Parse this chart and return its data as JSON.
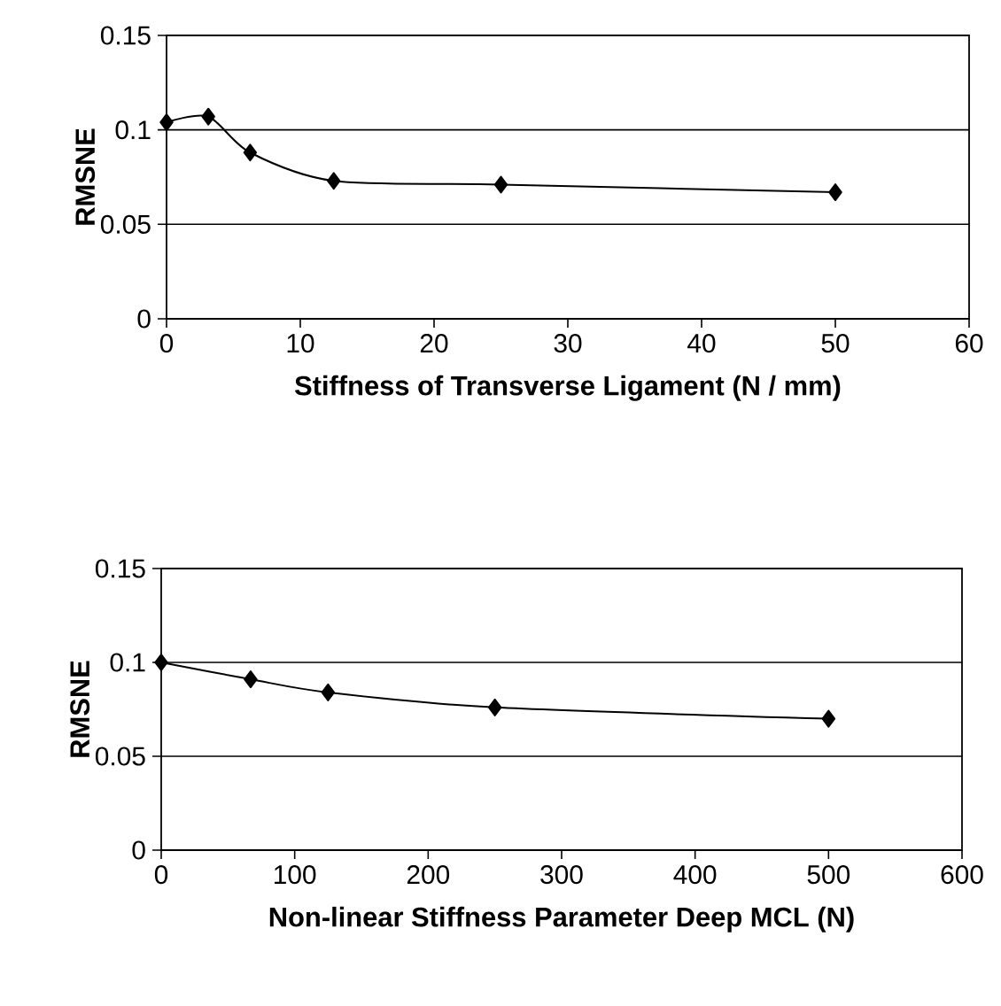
{
  "chart_data": [
    {
      "type": "line",
      "xlabel": "Stiffness of Transverse Ligament (N / mm)",
      "ylabel": "RMSNE",
      "x": [
        0,
        3.125,
        6.25,
        12.5,
        25,
        50
      ],
      "values": [
        0.104,
        0.107,
        0.088,
        0.073,
        0.071,
        0.067
      ],
      "color": "#000000",
      "marker": "diamond",
      "line_style": "solid",
      "grid": "y",
      "xlim": [
        0,
        60
      ],
      "xticks": [
        0,
        10,
        20,
        30,
        40,
        50,
        60
      ],
      "ylim": [
        0,
        0.15
      ],
      "yticks": [
        0,
        0.05,
        0.1,
        0.15
      ]
    },
    {
      "type": "line",
      "xlabel": "Non-linear Stiffness Parameter Deep MCL (N)",
      "ylabel": "RMSNE",
      "x": [
        0,
        67,
        125,
        250,
        500
      ],
      "values": [
        0.1,
        0.091,
        0.084,
        0.076,
        0.07
      ],
      "color": "#000000",
      "marker": "diamond",
      "line_style": "solid",
      "grid": "y",
      "xlim": [
        0,
        600
      ],
      "xticks": [
        0,
        100,
        200,
        300,
        400,
        500,
        600
      ],
      "ylim": [
        0,
        0.15
      ],
      "yticks": [
        0,
        0.05,
        0.1,
        0.15
      ]
    }
  ]
}
